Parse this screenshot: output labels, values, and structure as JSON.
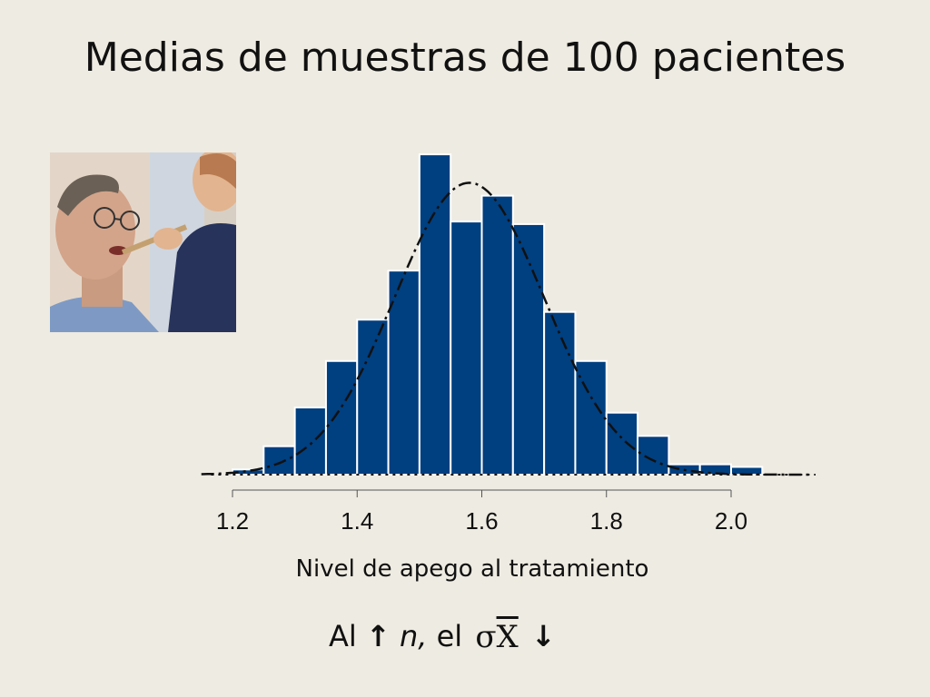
{
  "slide": {
    "title": "Medias de muestras de 100 pacientes",
    "footer": {
      "prefix": "Al",
      "up_arrow": "↑",
      "n_text": "n,",
      "el_text": "el",
      "sigma": "σ",
      "xbar": "X",
      "down_arrow": "↓"
    },
    "photo_icon": "patient-being-fed-photo"
  },
  "chart_data": {
    "type": "bar",
    "title": "",
    "xlabel": "Nivel de apego al tratamiento",
    "ylabel": "",
    "xlim": [
      1.1,
      2.15
    ],
    "xticks": [
      1.2,
      1.4,
      1.6,
      1.8,
      2.0
    ],
    "xtick_labels": [
      "1.2",
      "1.4",
      "1.6",
      "1.8",
      "2.0"
    ],
    "bin_width": 0.05,
    "bins_start": [
      1.2,
      1.25,
      1.3,
      1.35,
      1.4,
      1.45,
      1.5,
      1.55,
      1.6,
      1.65,
      1.7,
      1.75,
      1.8,
      1.85,
      1.9,
      1.95,
      2.0
    ],
    "values": [
      2,
      11,
      26,
      44,
      60,
      79,
      124,
      98,
      108,
      97,
      63,
      44,
      24,
      15,
      4,
      4,
      3
    ],
    "ylim": [
      0,
      130
    ],
    "bar_color": "#003f80",
    "curve": {
      "type": "normal",
      "mean": 1.58,
      "sd": 0.12,
      "peak": 113,
      "style": "dash-dot"
    }
  }
}
